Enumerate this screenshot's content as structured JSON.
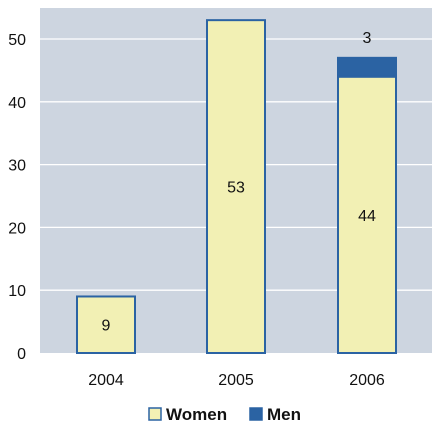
{
  "chart_data": {
    "type": "bar",
    "stacked": true,
    "categories": [
      "2004",
      "2005",
      "2006"
    ],
    "series": [
      {
        "name": "Women",
        "values": [
          9,
          53,
          44
        ],
        "color": "#f2f0b4"
      },
      {
        "name": "Men",
        "values": [
          0,
          0,
          3
        ],
        "color": "#2b63a3"
      }
    ],
    "data_labels": [
      {
        "category": "2004",
        "series": "Women",
        "text": "9"
      },
      {
        "category": "2005",
        "series": "Women",
        "text": "53"
      },
      {
        "category": "2006",
        "series": "Women",
        "text": "44"
      },
      {
        "category": "2006",
        "series": "Men",
        "text": "3"
      }
    ],
    "ylim": [
      0,
      56
    ],
    "yticks": [
      0,
      10,
      20,
      30,
      40,
      50
    ],
    "grid": true,
    "legend_position": "bottom-center",
    "colors": {
      "plot_background": "#cdd5e0",
      "gridline": "#ffffff",
      "bar_outline": "#2b63a3"
    }
  }
}
